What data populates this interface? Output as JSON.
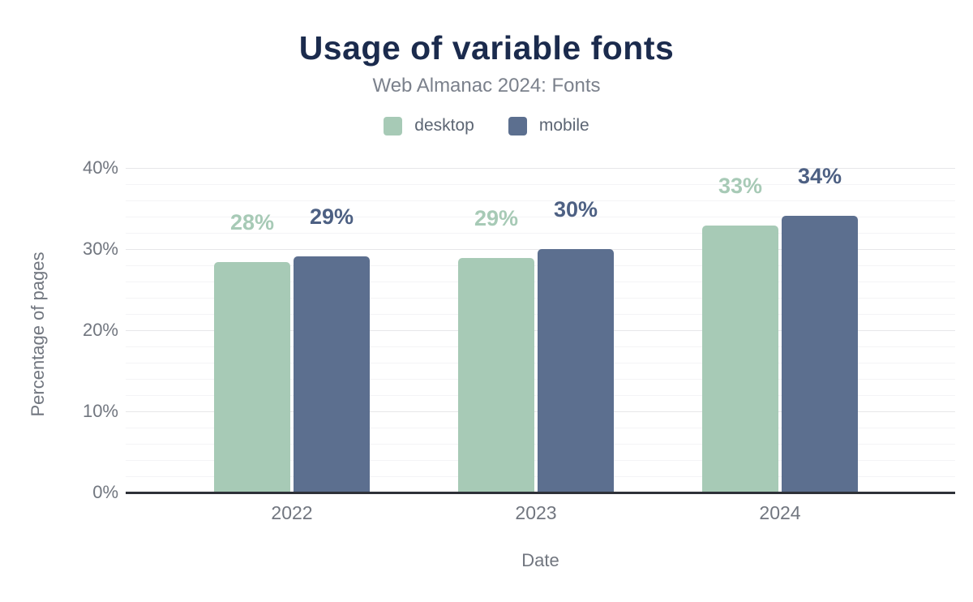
{
  "title": "Usage of variable fonts",
  "subtitle": "Web Almanac 2024: Fonts",
  "legend": {
    "items": [
      {
        "label": "desktop",
        "color": "#a7cab6"
      },
      {
        "label": "mobile",
        "color": "#5c6f8f"
      }
    ]
  },
  "chart_data": {
    "type": "bar",
    "title": "Usage of variable fonts",
    "subtitle": "Web Almanac 2024: Fonts",
    "categories": [
      "2022",
      "2023",
      "2024"
    ],
    "series": [
      {
        "name": "desktop",
        "color": "#a7cab6",
        "label_color": "#a7cab6",
        "values": [
          28.4,
          28.9,
          32.9
        ],
        "labels": [
          "28%",
          "29%",
          "33%"
        ]
      },
      {
        "name": "mobile",
        "color": "#5c6f8f",
        "label_color": "#4d6083",
        "values": [
          29.1,
          30.0,
          34.1
        ],
        "labels": [
          "29%",
          "30%",
          "34%"
        ]
      }
    ],
    "xlabel": "Date",
    "ylabel": "Percentage of pages",
    "ylim": [
      0,
      40
    ],
    "yticks": [
      {
        "value": 0,
        "label": "0%"
      },
      {
        "value": 10,
        "label": "10%"
      },
      {
        "value": 20,
        "label": "20%"
      },
      {
        "value": 30,
        "label": "30%"
      },
      {
        "value": 40,
        "label": "40%"
      }
    ],
    "minor_grid_step": 2,
    "grid": true,
    "legend_position": "top"
  },
  "colors": {
    "title": "#1b2b4d",
    "subtitle": "#7b818c",
    "axis_text": "#71767f",
    "legend_text": "#5c6573",
    "axis_line": "#2e3138",
    "grid_major": "#e7e7e9",
    "grid_minor": "#f4f4f6",
    "background": "#ffffff"
  }
}
